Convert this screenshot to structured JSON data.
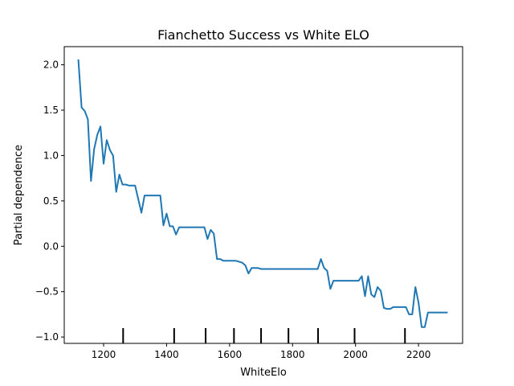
{
  "chart_data": {
    "type": "line",
    "title": "Fianchetto Success vs White ELO",
    "xlabel": "WhiteElo",
    "ylabel": "Partial dependence",
    "xlim": [
      1075,
      2340
    ],
    "ylim": [
      -1.07,
      2.2
    ],
    "xticks": [
      1200,
      1400,
      1600,
      1800,
      2000,
      2200
    ],
    "yticks": [
      -1.0,
      -0.5,
      0.0,
      0.5,
      1.0,
      1.5,
      2.0
    ],
    "ytick_labels": [
      "−1.0",
      "−0.5",
      "0.0",
      "0.5",
      "1.0",
      "1.5",
      "2.0"
    ],
    "line_color": "#1f77b4",
    "grid": false,
    "legend": "none",
    "deciles": [
      1262,
      1424,
      1524,
      1614,
      1700,
      1787,
      1881,
      1997,
      2157
    ],
    "series": [
      {
        "x": [
          1120,
          1130,
          1140,
          1150,
          1160,
          1170,
          1180,
          1190,
          1200,
          1210,
          1220,
          1230,
          1240,
          1250,
          1260,
          1270,
          1280,
          1300,
          1320,
          1330,
          1340,
          1360,
          1380,
          1390,
          1400,
          1410,
          1420,
          1430,
          1440,
          1450,
          1470,
          1490,
          1500,
          1510,
          1520,
          1530,
          1540,
          1550,
          1560,
          1570,
          1580,
          1600,
          1620,
          1640,
          1650,
          1660,
          1670,
          1680,
          1690,
          1700,
          1720,
          1740,
          1760,
          1780,
          1800,
          1820,
          1840,
          1860,
          1870,
          1880,
          1890,
          1900,
          1910,
          1920,
          1930,
          1950,
          1970,
          1990,
          2000,
          2010,
          2020,
          2030,
          2040,
          2050,
          2060,
          2070,
          2080,
          2090,
          2100,
          2110,
          2120,
          2140,
          2160,
          2170,
          2180,
          2190,
          2200,
          2210,
          2220,
          2230,
          2240,
          2250,
          2270,
          2290
        ],
        "y": [
          2.05,
          1.53,
          1.49,
          1.4,
          0.72,
          1.07,
          1.23,
          1.32,
          0.91,
          1.17,
          1.06,
          1.0,
          0.6,
          0.79,
          0.68,
          0.68,
          0.67,
          0.67,
          0.37,
          0.56,
          0.56,
          0.56,
          0.56,
          0.23,
          0.36,
          0.22,
          0.22,
          0.13,
          0.21,
          0.21,
          0.21,
          0.21,
          0.21,
          0.21,
          0.21,
          0.08,
          0.18,
          0.14,
          -0.14,
          -0.14,
          -0.16,
          -0.16,
          -0.16,
          -0.18,
          -0.21,
          -0.3,
          -0.24,
          -0.24,
          -0.24,
          -0.25,
          -0.25,
          -0.25,
          -0.25,
          -0.25,
          -0.25,
          -0.25,
          -0.25,
          -0.25,
          -0.25,
          -0.25,
          -0.14,
          -0.24,
          -0.27,
          -0.47,
          -0.38,
          -0.38,
          -0.38,
          -0.38,
          -0.38,
          -0.38,
          -0.33,
          -0.55,
          -0.33,
          -0.53,
          -0.56,
          -0.45,
          -0.49,
          -0.68,
          -0.69,
          -0.69,
          -0.67,
          -0.67,
          -0.67,
          -0.75,
          -0.75,
          -0.45,
          -0.62,
          -0.89,
          -0.89,
          -0.73,
          -0.73,
          -0.73,
          -0.73,
          -0.73
        ]
      }
    ]
  }
}
